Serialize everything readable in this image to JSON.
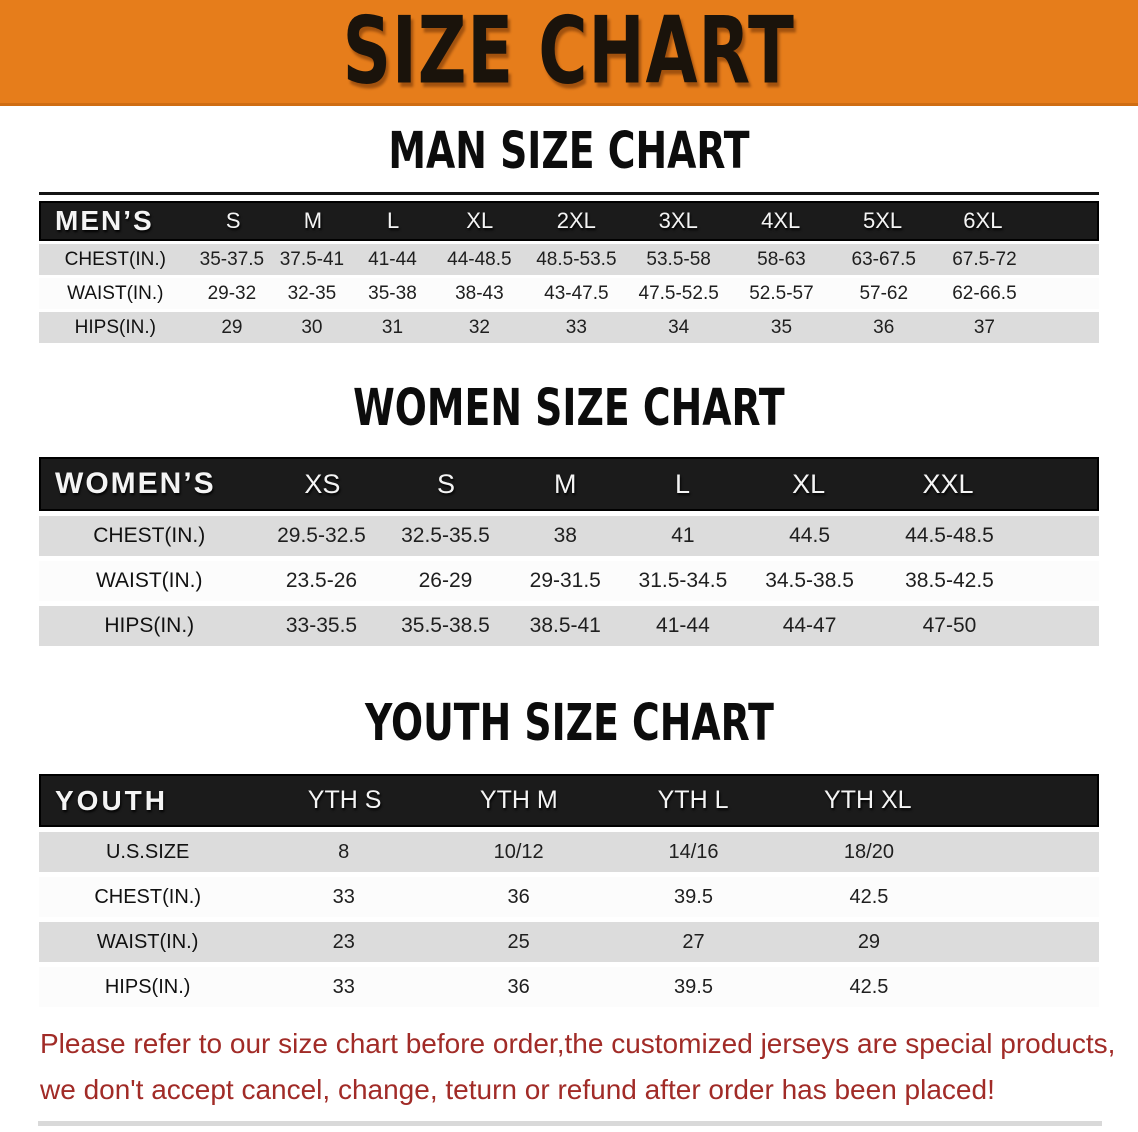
{
  "banner": {
    "title": "SIZE CHART"
  },
  "sections": [
    {
      "id": "men",
      "title": "MAN SIZE CHART",
      "table": {
        "header_label": "MEN’S",
        "columns": [
          "S",
          "M",
          "L",
          "XL",
          "2XL",
          "3XL",
          "4XL",
          "5XL",
          "6XL"
        ],
        "rows": [
          {
            "label": "CHEST(IN.)",
            "values": [
              "35-37.5",
              "37.5-41",
              "41-44",
              "44-48.5",
              "48.5-53.5",
              "53.5-58",
              "58-63",
              "63-67.5",
              "67.5-72"
            ]
          },
          {
            "label": "WAIST(IN.)",
            "values": [
              "29-32",
              "32-35",
              "35-38",
              "38-43",
              "43-47.5",
              "47.5-52.5",
              "52.5-57",
              "57-62",
              "62-66.5"
            ]
          },
          {
            "label": "HIPS(IN.)",
            "values": [
              "29",
              "30",
              "31",
              "32",
              "33",
              "34",
              "35",
              "36",
              "37"
            ]
          }
        ]
      }
    },
    {
      "id": "women",
      "title": "WOMEN SIZE CHART",
      "table": {
        "header_label": "WOMEN’S",
        "columns": [
          "XS",
          "S",
          "M",
          "L",
          "XL",
          "XXL"
        ],
        "rows": [
          {
            "label": "CHEST(IN.)",
            "values": [
              "29.5-32.5",
              "32.5-35.5",
              "38",
              "41",
              "44.5",
              "44.5-48.5"
            ]
          },
          {
            "label": "WAIST(IN.)",
            "values": [
              "23.5-26",
              "26-29",
              "29-31.5",
              "31.5-34.5",
              "34.5-38.5",
              "38.5-42.5"
            ]
          },
          {
            "label": "HIPS(IN.)",
            "values": [
              "33-35.5",
              "35.5-38.5",
              "38.5-41",
              "41-44",
              "44-47",
              "47-50"
            ]
          }
        ]
      }
    },
    {
      "id": "youth",
      "title": "YOUTH SIZE CHART",
      "table": {
        "header_label": "YOUTH",
        "columns": [
          "YTH S",
          "YTH M",
          "YTH L",
          "YTH XL"
        ],
        "rows": [
          {
            "label": "U.S.SIZE",
            "values": [
              "8",
              "10/12",
              "14/16",
              "18/20"
            ]
          },
          {
            "label": "CHEST(IN.)",
            "values": [
              "33",
              "36",
              "39.5",
              "42.5"
            ]
          },
          {
            "label": "WAIST(IN.)",
            "values": [
              "23",
              "25",
              "27",
              "29"
            ]
          },
          {
            "label": "HIPS(IN.)",
            "values": [
              "33",
              "36",
              "39.5",
              "42.5"
            ]
          }
        ]
      }
    }
  ],
  "footer": {
    "line1": "Please refer to our size chart before order,the customized jerseys are special products,",
    "line2": "we don't accept cancel, change, teturn or refund after order has been placed!"
  },
  "colors": {
    "banner_orange": "#e67d1b",
    "banner_edge": "#cf6d12",
    "header_black": "#1b1b1b",
    "row_gray": "#dcdcdc",
    "row_white": "#fcfcfc",
    "note_red": "#a12b27"
  }
}
